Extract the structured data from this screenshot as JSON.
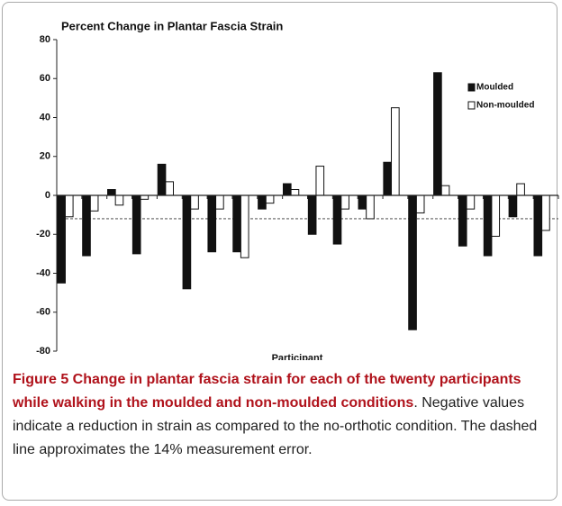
{
  "chart_data": {
    "type": "bar",
    "title": "Percent Change in Plantar Fascia Strain",
    "x_label": "Participant",
    "categories": [
      null,
      null,
      null,
      null,
      null,
      null,
      null,
      null,
      null,
      null,
      null,
      null,
      null,
      null,
      null,
      null,
      null,
      null,
      null,
      null
    ],
    "series": [
      {
        "name": "Moulded",
        "color": "#111111",
        "values": [
          -45,
          -31,
          3,
          -30,
          16,
          -48,
          -29,
          -29,
          -7,
          6,
          -20,
          -25,
          -7,
          17,
          -69,
          63,
          -26,
          -31,
          -11,
          -31
        ]
      },
      {
        "name": "Non-moulded",
        "color": "#ffffff",
        "values": [
          -11,
          -8,
          -5,
          -2,
          7,
          -7,
          -7,
          -32,
          -4,
          3,
          15,
          -7,
          -12,
          45,
          -9,
          5,
          -7,
          -21,
          6,
          -18
        ]
      }
    ],
    "reference_line": -12,
    "ylim": [
      -80,
      80
    ],
    "yticks": [
      -80,
      -60,
      -40,
      -20,
      0,
      20,
      40,
      60,
      80
    ],
    "legend": "upper right"
  },
  "caption": {
    "bold": "Figure 5 Change in plantar fascia strain for each of the twenty participants while walking in the moulded and non-moulded conditions",
    "text": ". Negative values indicate a reduction in strain as compared to the no-orthotic condition. The dashed line approximates the 14% measurement error."
  }
}
